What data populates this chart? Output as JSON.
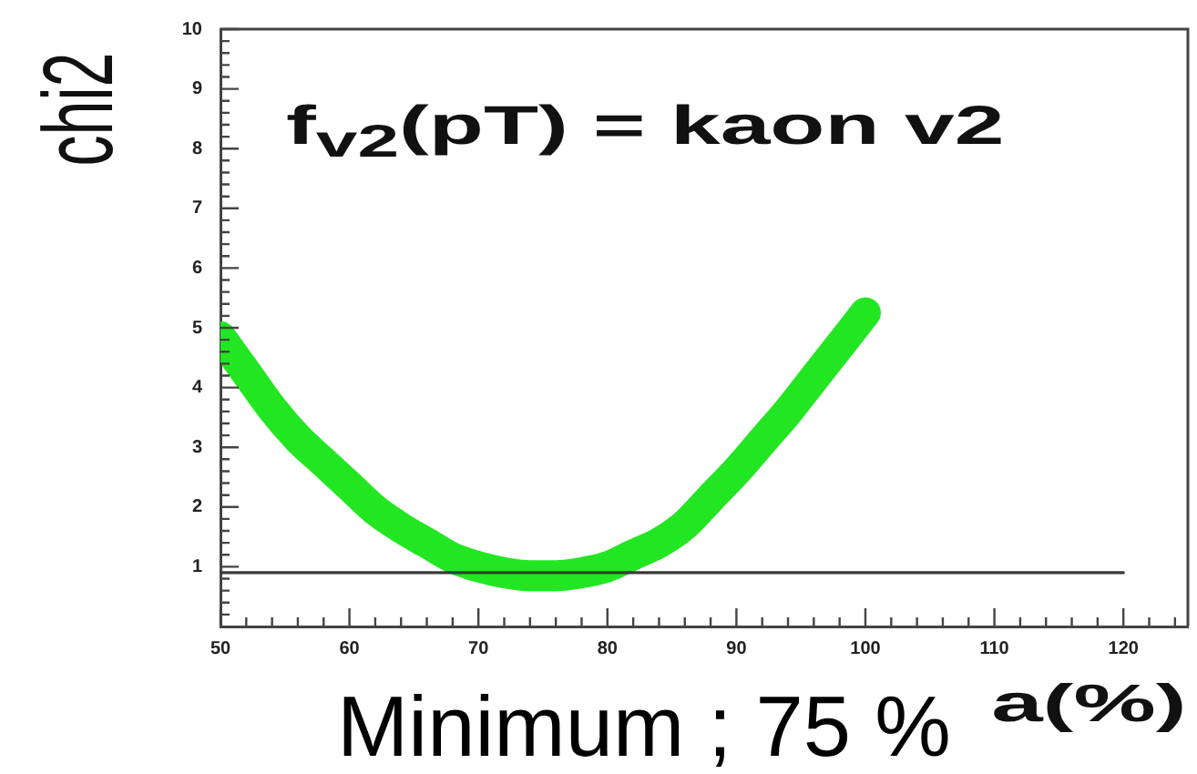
{
  "chart_data": {
    "type": "line",
    "xlabel": "a(%)",
    "ylabel": "chi2",
    "annotations": [
      "f$_{v2}$(pT) = kaon v2",
      "Minimum ; 75 %"
    ],
    "xlim": [
      50,
      125
    ],
    "ylim": [
      0,
      10
    ],
    "xticks": [
      50,
      {
        "value": 52,
        "label": null
      },
      {
        "value": 54,
        "label": null
      },
      {
        "value": 56,
        "label": null
      },
      {
        "value": 58,
        "label": null
      },
      60,
      {
        "value": 62,
        "label": null
      },
      {
        "value": 64,
        "label": null
      },
      {
        "value": 66,
        "label": null
      },
      {
        "value": 68,
        "label": null
      },
      70,
      {
        "value": 72,
        "label": null
      },
      {
        "value": 74,
        "label": null
      },
      {
        "value": 76,
        "label": null
      },
      {
        "value": 78,
        "label": null
      },
      80,
      {
        "value": 82,
        "label": null
      },
      {
        "value": 84,
        "label": null
      },
      {
        "value": 86,
        "label": null
      },
      {
        "value": 88,
        "label": null
      },
      90,
      {
        "value": 92,
        "label": null
      },
      {
        "value": 94,
        "label": null
      },
      {
        "value": 96,
        "label": null
      },
      {
        "value": 98,
        "label": null
      },
      100,
      {
        "value": 102,
        "label": null
      },
      {
        "value": 104,
        "label": null
      },
      {
        "value": 106,
        "label": null
      },
      {
        "value": 108,
        "label": null
      },
      110,
      {
        "value": 112,
        "label": null
      },
      {
        "value": 114,
        "label": null
      },
      {
        "value": 116,
        "label": null
      },
      {
        "value": 118,
        "label": null
      },
      120,
      {
        "value": 122,
        "label": null
      },
      {
        "value": 124,
        "label": null
      }
    ],
    "yticks": [
      {
        "value": 0.2,
        "label": null
      },
      {
        "value": 0.4,
        "label": null
      },
      {
        "value": 0.6,
        "label": null
      },
      {
        "value": 0.8,
        "label": null
      },
      1,
      {
        "value": 1.2,
        "label": null
      },
      {
        "value": 1.4,
        "label": null
      },
      {
        "value": 1.6,
        "label": null
      },
      {
        "value": 1.8,
        "label": null
      },
      2,
      {
        "value": 2.2,
        "label": null
      },
      {
        "value": 2.4,
        "label": null
      },
      {
        "value": 2.6,
        "label": null
      },
      {
        "value": 2.8,
        "label": null
      },
      3,
      {
        "value": 3.2,
        "label": null
      },
      {
        "value": 3.4,
        "label": null
      },
      {
        "value": 3.6,
        "label": null
      },
      {
        "value": 3.8,
        "label": null
      },
      4,
      {
        "value": 4.2,
        "label": null
      },
      {
        "value": 4.4,
        "label": null
      },
      {
        "value": 4.6,
        "label": null
      },
      {
        "value": 4.8,
        "label": null
      },
      5,
      {
        "value": 5.2,
        "label": null
      },
      {
        "value": 5.4,
        "label": null
      },
      {
        "value": 5.6,
        "label": null
      },
      {
        "value": 5.8,
        "label": null
      },
      6,
      {
        "value": 6.2,
        "label": null
      },
      {
        "value": 6.4,
        "label": null
      },
      {
        "value": 6.6,
        "label": null
      },
      {
        "value": 6.8,
        "label": null
      },
      7,
      {
        "value": 7.2,
        "label": null
      },
      {
        "value": 7.4,
        "label": null
      },
      {
        "value": 7.6,
        "label": null
      },
      {
        "value": 7.8,
        "label": null
      },
      8,
      {
        "value": 8.2,
        "label": null
      },
      {
        "value": 8.4,
        "label": null
      },
      {
        "value": 8.6,
        "label": null
      },
      {
        "value": 8.8,
        "label": null
      },
      9,
      {
        "value": 9.2,
        "label": null
      },
      {
        "value": 9.4,
        "label": null
      },
      {
        "value": 9.6,
        "label": null
      },
      {
        "value": 9.8,
        "label": null
      },
      10
    ],
    "series": [
      {
        "color": "#22e622",
        "x": [
          50,
          52,
          54,
          56,
          58,
          60,
          62,
          64,
          66,
          68,
          70,
          72,
          74,
          76,
          78,
          80,
          82,
          84,
          86,
          88,
          90,
          92,
          94,
          96,
          98,
          100
        ],
        "values": [
          4.85,
          4.25,
          3.65,
          3.15,
          2.75,
          2.35,
          1.95,
          1.65,
          1.4,
          1.15,
          1.0,
          0.9,
          0.85,
          0.85,
          0.9,
          1.0,
          1.2,
          1.4,
          1.7,
          2.15,
          2.6,
          3.1,
          3.6,
          4.15,
          4.7,
          5.25
        ]
      },
      {
        "color": "#3a3a3a",
        "x": [
          50,
          120
        ],
        "values": [
          0.9,
          0.9
        ]
      }
    ]
  }
}
